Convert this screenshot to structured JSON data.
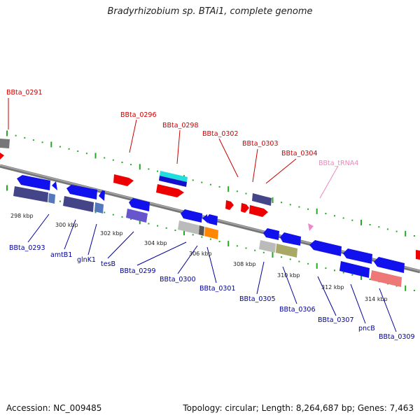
{
  "title": "Bradyrhizobium sp. BTAi1, complete genome",
  "footer": {
    "accession": "Accession: NC_009485",
    "summary": "Topology: circular; Length: 8,264,687 bp; Genes: 7,463"
  },
  "colors": {
    "label_forward": "#cc0000",
    "label_reverse": "#000099",
    "label_trna": "#ee88bb",
    "backbone": "#888888",
    "tick": "#22aa22",
    "gene_forward": "#ff0000",
    "gene_reverse": "#0000ee"
  },
  "diagram": {
    "scale_labels": [
      "298 kbp",
      "300 kbp",
      "302 kbp",
      "304 kbp",
      "306 kbp",
      "308 kbp",
      "310 kbp",
      "312 kbp",
      "314 kbp"
    ],
    "gene_labels": [
      {
        "text": "BBta_0291",
        "strand": "forward"
      },
      {
        "text": "BBta_0296",
        "strand": "forward"
      },
      {
        "text": "BBta_0298",
        "strand": "forward"
      },
      {
        "text": "BBta_0302",
        "strand": "forward"
      },
      {
        "text": "BBta_0303",
        "strand": "forward"
      },
      {
        "text": "BBta_0304",
        "strand": "forward"
      },
      {
        "text": "BBta_tRNA4",
        "strand": "trna"
      },
      {
        "text": "BBta_0293",
        "strand": "reverse"
      },
      {
        "text": "amtB1",
        "strand": "reverse"
      },
      {
        "text": "glnK1",
        "strand": "reverse"
      },
      {
        "text": "tesB",
        "strand": "reverse"
      },
      {
        "text": "BBta_0299",
        "strand": "reverse"
      },
      {
        "text": "BBta_0300",
        "strand": "reverse"
      },
      {
        "text": "BBta_0301",
        "strand": "reverse"
      },
      {
        "text": "BBta_0305",
        "strand": "reverse"
      },
      {
        "text": "BBta_0306",
        "strand": "reverse"
      },
      {
        "text": "BBta_0307",
        "strand": "reverse"
      },
      {
        "text": "pncB",
        "strand": "reverse"
      },
      {
        "text": "BBta_0309",
        "strand": "reverse"
      }
    ]
  }
}
